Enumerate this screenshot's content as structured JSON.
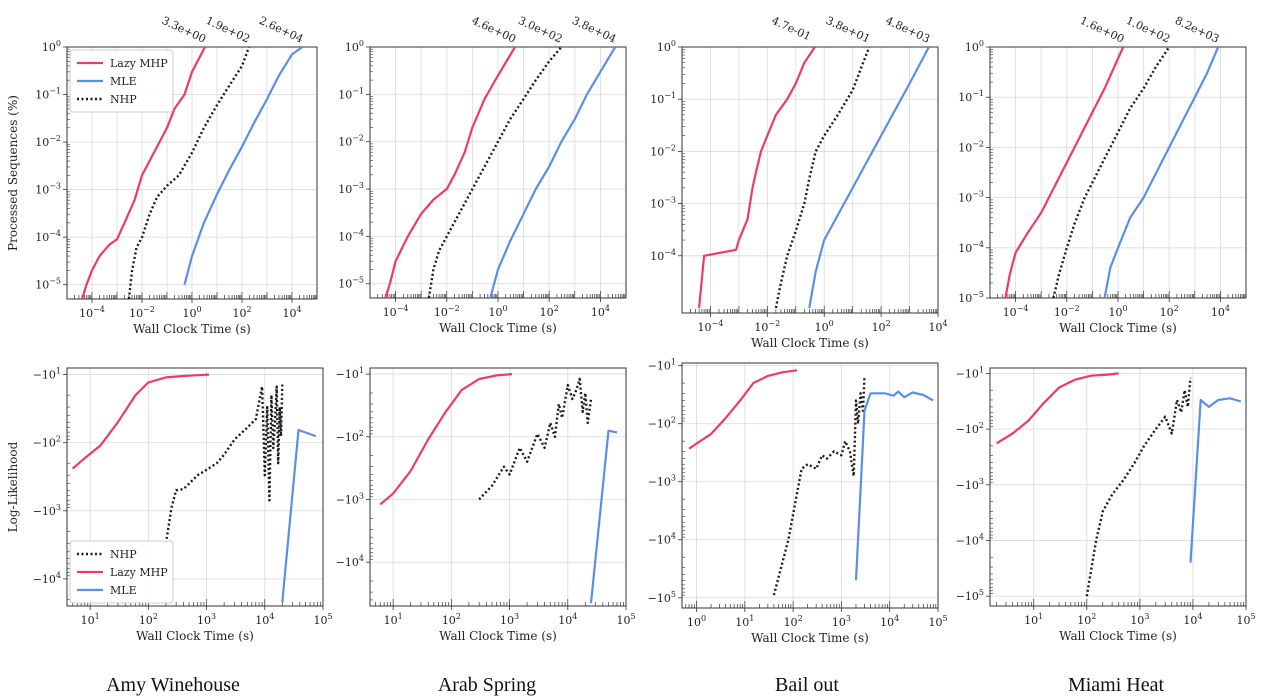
{
  "colors": {
    "lazy_mhp": "#ee3a67",
    "mle": "#5b8fe6",
    "nhp": "#1a1a1a",
    "grid": "#dddddd",
    "axis": "#333333"
  },
  "captions": [
    "Amy Winehouse",
    "Arab Spring",
    "Bail out",
    "Miami Heat"
  ],
  "chart_data": [
    {
      "type": "line",
      "panel": "top",
      "dataset": "Amy Winehouse",
      "xlabel": "Wall Clock Time (s)",
      "ylabel": "Processed Sequences (%)",
      "xscale": "log",
      "yscale": "log",
      "xlim": [
        1e-05,
        100000
      ],
      "ylim": [
        5e-06,
        1
      ],
      "xticks": [
        "10^-4",
        "10^-2",
        "10^0",
        "10^2",
        "10^4"
      ],
      "yticks": [
        "10^-5",
        "10^-4",
        "10^-3",
        "10^-2",
        "10^-1",
        "10^0"
      ],
      "grid": true,
      "legend_position": "top-left",
      "series": [
        {
          "name": "Lazy MHP",
          "color_key": "lazy_mhp",
          "style": "solid",
          "x": [
            4e-05,
            6e-05,
            0.0001,
            0.0002,
            0.0005,
            0.001,
            0.002,
            0.005,
            0.01,
            0.02,
            0.05,
            0.1,
            0.2,
            0.5,
            1,
            3.3
          ],
          "y": [
            5e-06,
            1e-05,
            2e-05,
            4e-05,
            7e-05,
            9e-05,
            0.0002,
            0.0006,
            0.002,
            0.004,
            0.01,
            0.02,
            0.05,
            0.1,
            0.3,
            1
          ]
        },
        {
          "name": "MLE",
          "color_key": "mle",
          "style": "solid",
          "x": [
            0.5,
            1,
            3,
            10,
            30,
            100,
            300,
            1000,
            3000,
            10000,
            26000
          ],
          "y": [
            1e-05,
            4e-05,
            0.0002,
            0.0008,
            0.0025,
            0.008,
            0.025,
            0.08,
            0.25,
            0.7,
            1
          ]
        },
        {
          "name": "NHP",
          "color_key": "nhp",
          "style": "dotted",
          "x": [
            0.003,
            0.004,
            0.006,
            0.01,
            0.02,
            0.04,
            0.1,
            0.3,
            1,
            3,
            10,
            30,
            100,
            190
          ],
          "y": [
            5e-06,
            2e-05,
            6e-05,
            0.0001,
            0.0003,
            0.0007,
            0.0012,
            0.002,
            0.006,
            0.02,
            0.06,
            0.15,
            0.4,
            1
          ]
        }
      ],
      "end_labels": [
        "3.3e+00",
        "1.9e+02",
        "2.6e+04"
      ]
    },
    {
      "type": "line",
      "panel": "top",
      "dataset": "Arab Spring",
      "xlabel": "Wall Clock Time (s)",
      "ylabel": "",
      "xscale": "log",
      "yscale": "log",
      "xlim": [
        1e-05,
        100000
      ],
      "ylim": [
        5e-06,
        1
      ],
      "xticks": [
        "10^-4",
        "10^-2",
        "10^0",
        "10^2",
        "10^4"
      ],
      "yticks": [
        "10^-5",
        "10^-4",
        "10^-3",
        "10^-2",
        "10^-1",
        "10^0"
      ],
      "grid": true,
      "series": [
        {
          "name": "Lazy MHP",
          "color_key": "lazy_mhp",
          "style": "solid",
          "x": [
            4e-05,
            6e-05,
            0.0001,
            0.0003,
            0.001,
            0.003,
            0.01,
            0.02,
            0.05,
            0.1,
            0.3,
            1,
            4.6
          ],
          "y": [
            5e-06,
            1e-05,
            3e-05,
            0.0001,
            0.0003,
            0.0006,
            0.001,
            0.002,
            0.006,
            0.02,
            0.08,
            0.25,
            1
          ]
        },
        {
          "name": "MLE",
          "color_key": "mle",
          "style": "solid",
          "x": [
            0.5,
            1,
            3,
            10,
            30,
            100,
            300,
            1000,
            3000,
            10000,
            38000
          ],
          "y": [
            5e-06,
            2e-05,
            8e-05,
            0.0003,
            0.001,
            0.003,
            0.01,
            0.03,
            0.1,
            0.3,
            1
          ]
        },
        {
          "name": "NHP",
          "color_key": "nhp",
          "style": "dotted",
          "x": [
            0.002,
            0.003,
            0.005,
            0.01,
            0.02,
            0.05,
            0.1,
            0.3,
            1,
            3,
            10,
            30,
            100,
            300
          ],
          "y": [
            5e-06,
            2e-05,
            5e-05,
            0.0001,
            0.0002,
            0.0005,
            0.001,
            0.003,
            0.01,
            0.03,
            0.08,
            0.2,
            0.5,
            1
          ]
        }
      ],
      "end_labels": [
        "4.6e+00",
        "3.0e+02",
        "3.8e+04"
      ]
    },
    {
      "type": "line",
      "panel": "top",
      "dataset": "Bail out",
      "xlabel": "Wall Clock Time (s)",
      "ylabel": "",
      "xscale": "log",
      "yscale": "log",
      "xlim": [
        1e-05,
        10000
      ],
      "ylim": [
        8e-06,
        1
      ],
      "xticks": [
        "10^-4",
        "10^-2",
        "10^0",
        "10^2",
        "10^4"
      ],
      "yticks": [
        "10^-4",
        "10^-3",
        "10^-2",
        "10^-1",
        "10^0"
      ],
      "grid": true,
      "series": [
        {
          "name": "Lazy MHP",
          "color_key": "lazy_mhp",
          "style": "solid",
          "x": [
            4e-05,
            4.5e-05,
            6e-05,
            0.0008,
            0.001,
            0.002,
            0.003,
            0.004,
            0.006,
            0.01,
            0.02,
            0.05,
            0.1,
            0.2,
            0.47
          ],
          "y": [
            1e-05,
            2e-05,
            0.0001,
            0.00013,
            0.0002,
            0.0005,
            0.002,
            0.004,
            0.01,
            0.02,
            0.05,
            0.1,
            0.2,
            0.5,
            1
          ]
        },
        {
          "name": "MLE",
          "color_key": "mle",
          "style": "solid",
          "x": [
            0.3,
            0.5,
            1,
            3,
            10,
            30,
            100,
            300,
            1000,
            4800
          ],
          "y": [
            1e-05,
            5e-05,
            0.0002,
            0.0006,
            0.002,
            0.006,
            0.02,
            0.06,
            0.2,
            1
          ]
        },
        {
          "name": "NHP",
          "color_key": "nhp",
          "style": "dotted",
          "x": [
            0.02,
            0.03,
            0.05,
            0.1,
            0.2,
            0.3,
            0.5,
            1,
            3,
            10,
            20,
            38
          ],
          "y": [
            1e-05,
            3e-05,
            0.0001,
            0.0003,
            0.001,
            0.003,
            0.01,
            0.02,
            0.05,
            0.15,
            0.4,
            1
          ]
        }
      ],
      "end_labels": [
        "4.7e-01",
        "3.8e+01",
        "4.8e+03"
      ]
    },
    {
      "type": "line",
      "panel": "top",
      "dataset": "Miami Heat",
      "xlabel": "Wall Clock Time (s)",
      "ylabel": "",
      "xscale": "log",
      "yscale": "log",
      "xlim": [
        1e-05,
        100000
      ],
      "ylim": [
        1e-05,
        1
      ],
      "xticks": [
        "10^-4",
        "10^-2",
        "10^0",
        "10^2",
        "10^4"
      ],
      "yticks": [
        "10^-5",
        "10^-4",
        "10^-3",
        "10^-2",
        "10^-1",
        "10^0"
      ],
      "grid": true,
      "series": [
        {
          "name": "Lazy MHP",
          "color_key": "lazy_mhp",
          "style": "solid",
          "x": [
            4e-05,
            6e-05,
            0.0001,
            0.0003,
            0.001,
            0.003,
            0.01,
            0.03,
            0.1,
            0.3,
            1.6
          ],
          "y": [
            1e-05,
            3e-05,
            8e-05,
            0.0002,
            0.0005,
            0.0015,
            0.005,
            0.015,
            0.05,
            0.15,
            1
          ]
        },
        {
          "name": "MLE",
          "color_key": "mle",
          "style": "solid",
          "x": [
            0.3,
            0.5,
            1,
            3,
            10,
            30,
            100,
            300,
            1000,
            3000,
            8200
          ],
          "y": [
            1e-05,
            4e-05,
            0.0001,
            0.0004,
            0.001,
            0.003,
            0.01,
            0.03,
            0.1,
            0.3,
            1
          ]
        },
        {
          "name": "NHP",
          "color_key": "nhp",
          "style": "dotted",
          "x": [
            0.003,
            0.005,
            0.01,
            0.02,
            0.05,
            0.1,
            0.3,
            1,
            3,
            10,
            30,
            100
          ],
          "y": [
            1e-05,
            3e-05,
            0.0001,
            0.0003,
            0.001,
            0.002,
            0.006,
            0.02,
            0.06,
            0.15,
            0.4,
            1
          ]
        }
      ],
      "end_labels": [
        "1.6e+00",
        "1.0e+02",
        "8.2e+03"
      ]
    },
    {
      "type": "line",
      "panel": "bottom",
      "dataset": "Amy Winehouse",
      "xlabel": "Wall Clock Time (s)",
      "ylabel": "Log-Likelihood",
      "xscale": "log",
      "yscale": "symlog-negative",
      "xlim": [
        4,
        100000
      ],
      "ylim": [
        -25000,
        -8
      ],
      "xticks": [
        "10^1",
        "10^2",
        "10^3",
        "10^4",
        "10^5"
      ],
      "yticks": [
        "-10^1",
        "-10^2",
        "-10^3",
        "-10^4"
      ],
      "grid": true,
      "legend_position": "bottom-left",
      "series": [
        {
          "name": "NHP",
          "color_key": "nhp",
          "style": "dotted",
          "x": [
            200,
            250,
            300,
            400,
            500,
            700,
            1000,
            1500,
            2000,
            3000,
            5000,
            7000,
            9000,
            10000,
            11000,
            12000,
            13000,
            14000,
            15000,
            16000,
            17000,
            18000,
            19000,
            20000
          ],
          "y": [
            -3000,
            -900,
            -500,
            -480,
            -400,
            -300,
            -250,
            -200,
            -150,
            -90,
            -60,
            -45,
            -15,
            -300,
            -30,
            -700,
            -20,
            -120,
            -50,
            -15,
            -200,
            -30,
            -80,
            -14
          ]
        },
        {
          "name": "Lazy MHP",
          "color_key": "lazy_mhp",
          "style": "solid",
          "x": [
            5,
            8,
            15,
            30,
            60,
            100,
            200,
            400,
            700,
            1100
          ],
          "y": [
            -240,
            -170,
            -110,
            -50,
            -20,
            -13,
            -11,
            -10.5,
            -10.2,
            -10
          ]
        },
        {
          "name": "MLE",
          "color_key": "mle",
          "style": "solid",
          "x": [
            20000,
            38000,
            75000
          ],
          "y": [
            -22000,
            -65,
            -80
          ]
        }
      ]
    },
    {
      "type": "line",
      "panel": "bottom",
      "dataset": "Arab Spring",
      "xlabel": "Wall Clock Time (s)",
      "ylabel": "",
      "xscale": "log",
      "yscale": "symlog-negative",
      "xlim": [
        4,
        100000
      ],
      "ylim": [
        -50000,
        -8
      ],
      "xticks": [
        "10^1",
        "10^2",
        "10^3",
        "10^4",
        "10^5"
      ],
      "yticks": [
        "-10^1",
        "-10^2",
        "-10^3",
        "-10^4"
      ],
      "grid": true,
      "series": [
        {
          "name": "Lazy MHP",
          "color_key": "lazy_mhp",
          "style": "solid",
          "x": [
            6,
            10,
            20,
            40,
            80,
            150,
            300,
            600,
            1100
          ],
          "y": [
            -1200,
            -800,
            -350,
            -110,
            -40,
            -18,
            -12,
            -10.5,
            -10
          ]
        },
        {
          "name": "NHP",
          "color_key": "nhp",
          "style": "dotted",
          "x": [
            300,
            500,
            800,
            1000,
            1500,
            2000,
            3000,
            4000,
            5000,
            6000,
            7000,
            8000,
            10000,
            12000,
            14000,
            16000,
            18000,
            20000,
            22000,
            25000
          ],
          "y": [
            -1000,
            -600,
            -300,
            -400,
            -150,
            -250,
            -90,
            -150,
            -60,
            -100,
            -30,
            -50,
            -15,
            -25,
            -18,
            -12,
            -40,
            -20,
            -60,
            -25
          ]
        },
        {
          "name": "MLE",
          "color_key": "mle",
          "style": "solid",
          "x": [
            25000,
            50000,
            70000
          ],
          "y": [
            -45000,
            -80,
            -85
          ]
        }
      ]
    },
    {
      "type": "line",
      "panel": "bottom",
      "dataset": "Bail out",
      "xlabel": "Wall Clock Time (s)",
      "ylabel": "",
      "xscale": "log",
      "yscale": "symlog-negative",
      "xlim": [
        0.5,
        100000
      ],
      "ylim": [
        -150000,
        -9
      ],
      "xticks": [
        "10^0",
        "10^1",
        "10^2",
        "10^3",
        "10^4",
        "10^5"
      ],
      "yticks": [
        "-10^1",
        "-10^2",
        "-10^3",
        "-10^4",
        "-10^5"
      ],
      "grid": true,
      "series": [
        {
          "name": "Lazy MHP",
          "color_key": "lazy_mhp",
          "style": "solid",
          "x": [
            0.7,
            1,
            2,
            4,
            8,
            15,
            30,
            60,
            120
          ],
          "y": [
            -270,
            -220,
            -150,
            -80,
            -40,
            -20,
            -15,
            -13,
            -12
          ]
        },
        {
          "name": "NHP",
          "color_key": "nhp",
          "style": "dotted",
          "x": [
            40,
            80,
            150,
            200,
            300,
            400,
            500,
            700,
            1000,
            1200,
            1500,
            1800,
            2000,
            2200,
            2500,
            2800,
            3000
          ],
          "y": [
            -90000,
            -10000,
            -600,
            -500,
            -600,
            -350,
            -400,
            -300,
            -350,
            -200,
            -300,
            -800,
            -40,
            -100,
            -30,
            -60,
            -15
          ]
        },
        {
          "name": "MLE",
          "color_key": "mle",
          "style": "solid",
          "x": [
            2000,
            3000,
            4000,
            8000,
            12000,
            15000,
            20000,
            30000,
            50000,
            80000
          ],
          "y": [
            -50000,
            -60,
            -30,
            -30,
            -33,
            -28,
            -35,
            -29,
            -32,
            -40
          ]
        }
      ]
    },
    {
      "type": "line",
      "panel": "bottom",
      "dataset": "Miami Heat",
      "xlabel": "Wall Clock Time (s)",
      "ylabel": "",
      "xscale": "log",
      "yscale": "symlog-negative",
      "xlim": [
        1.5,
        100000
      ],
      "ylim": [
        -150000,
        -8
      ],
      "xticks": [
        "10^1",
        "10^2",
        "10^3",
        "10^4",
        "10^5"
      ],
      "yticks": [
        "-10^1",
        "-10^2",
        "-10^3",
        "-10^4",
        "-10^5"
      ],
      "grid": true,
      "series": [
        {
          "name": "Lazy MHP",
          "color_key": "lazy_mhp",
          "style": "solid",
          "x": [
            2,
            4,
            8,
            15,
            30,
            60,
            120,
            250,
            400
          ],
          "y": [
            -180,
            -120,
            -70,
            -35,
            -18,
            -13,
            -11,
            -10.5,
            -10
          ]
        },
        {
          "name": "NHP",
          "color_key": "nhp",
          "style": "dotted",
          "x": [
            100,
            150,
            200,
            300,
            500,
            800,
            1200,
            2000,
            3000,
            4000,
            5000,
            6000,
            7000,
            8000,
            9000
          ],
          "y": [
            -100000,
            -10000,
            -3000,
            -1500,
            -800,
            -400,
            -200,
            -100,
            -60,
            -120,
            -30,
            -50,
            -20,
            -40,
            -12
          ]
        },
        {
          "name": "MLE",
          "color_key": "mle",
          "style": "solid",
          "x": [
            9000,
            14000,
            20000,
            30000,
            50000,
            80000
          ],
          "y": [
            -25000,
            -30,
            -40,
            -30,
            -28,
            -32
          ]
        }
      ]
    }
  ]
}
